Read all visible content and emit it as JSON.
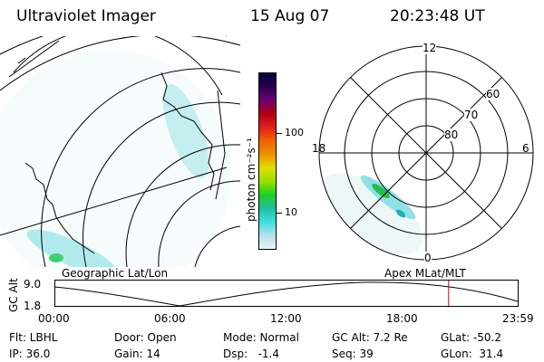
{
  "header": {
    "title": "Ultraviolet Imager",
    "date": "15 Aug 07",
    "time": "20:23:48 UT"
  },
  "left_map": {
    "label": "Geographic Lat/Lon"
  },
  "right_map": {
    "label": "Apex  MLat/MLT",
    "mlt_labels": {
      "top": "12",
      "left": "18",
      "right": "6",
      "bottom": "0"
    },
    "lat_labels": [
      "60",
      "70",
      "80"
    ]
  },
  "colorbar": {
    "unit_label": "photon cm⁻²s⁻¹",
    "ticks": [
      "100",
      "10"
    ],
    "colors": [
      "#000040",
      "#2a0050",
      "#6a0070",
      "#b00010",
      "#e02020",
      "#f06000",
      "#f09000",
      "#e0e000",
      "#90e000",
      "#20d020",
      "#20c0a0",
      "#40e0e0",
      "#b0e0e8",
      "#e8f4f4"
    ]
  },
  "altitude_plot": {
    "ylabel": "GC Alt",
    "ymax": "9.0",
    "ymin": "1.8",
    "x_ticks": [
      "00:00",
      "06:00",
      "12:00",
      "18:00",
      "23:59"
    ],
    "marker_time": "20:24",
    "marker_color": "#cc0000"
  },
  "status": {
    "row1": [
      {
        "label": "Flt: LBHL"
      },
      {
        "label": "Door: Open"
      },
      {
        "label": "Mode: Normal"
      },
      {
        "label": "GC Alt: 7.2 Re"
      },
      {
        "label": "GLat: -50.2"
      }
    ],
    "row2": [
      {
        "label": "IP: 36.0"
      },
      {
        "label": "Gain: 14"
      },
      {
        "label": "Dsp:   -1.4"
      },
      {
        "label": "Seq: 39"
      },
      {
        "label": "GLon:  31.4"
      }
    ]
  }
}
